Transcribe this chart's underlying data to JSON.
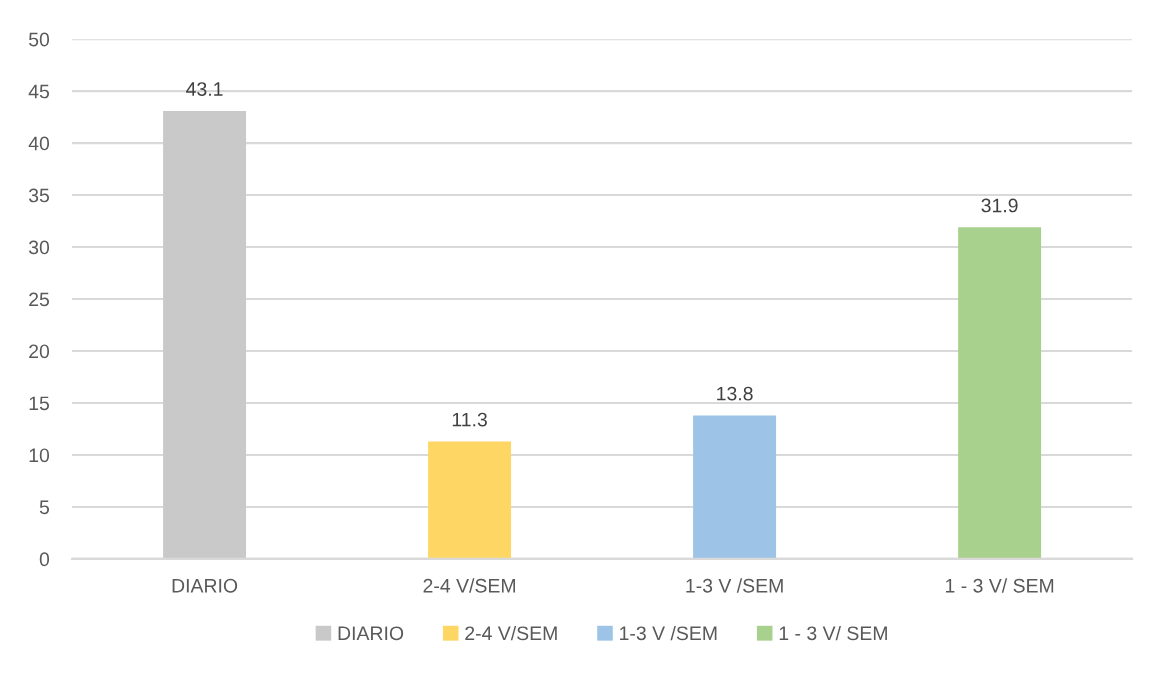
{
  "chart_data": {
    "type": "bar",
    "categories": [
      "DIARIO",
      "2-4 V/SEM",
      "1-3 V /SEM",
      "1 - 3 V/ SEM"
    ],
    "series": [
      {
        "name": "DIARIO",
        "color": "#c9c9c9",
        "values": [
          43.1,
          null,
          null,
          null
        ]
      },
      {
        "name": "2-4 V/SEM",
        "color": "#fdd663",
        "values": [
          null,
          11.3,
          null,
          null
        ]
      },
      {
        "name": "1-3 V /SEM",
        "color": "#9dc3e6",
        "values": [
          null,
          null,
          13.8,
          null
        ]
      },
      {
        "name": "1 - 3 V/ SEM",
        "color": "#a9d18e",
        "values": [
          null,
          null,
          null,
          31.9
        ]
      }
    ],
    "ylim": [
      0,
      50
    ],
    "yticks": [
      0,
      5,
      10,
      15,
      20,
      25,
      30,
      35,
      40,
      45,
      50
    ],
    "grid": "y",
    "legend": "bottom",
    "data_labels": true
  }
}
